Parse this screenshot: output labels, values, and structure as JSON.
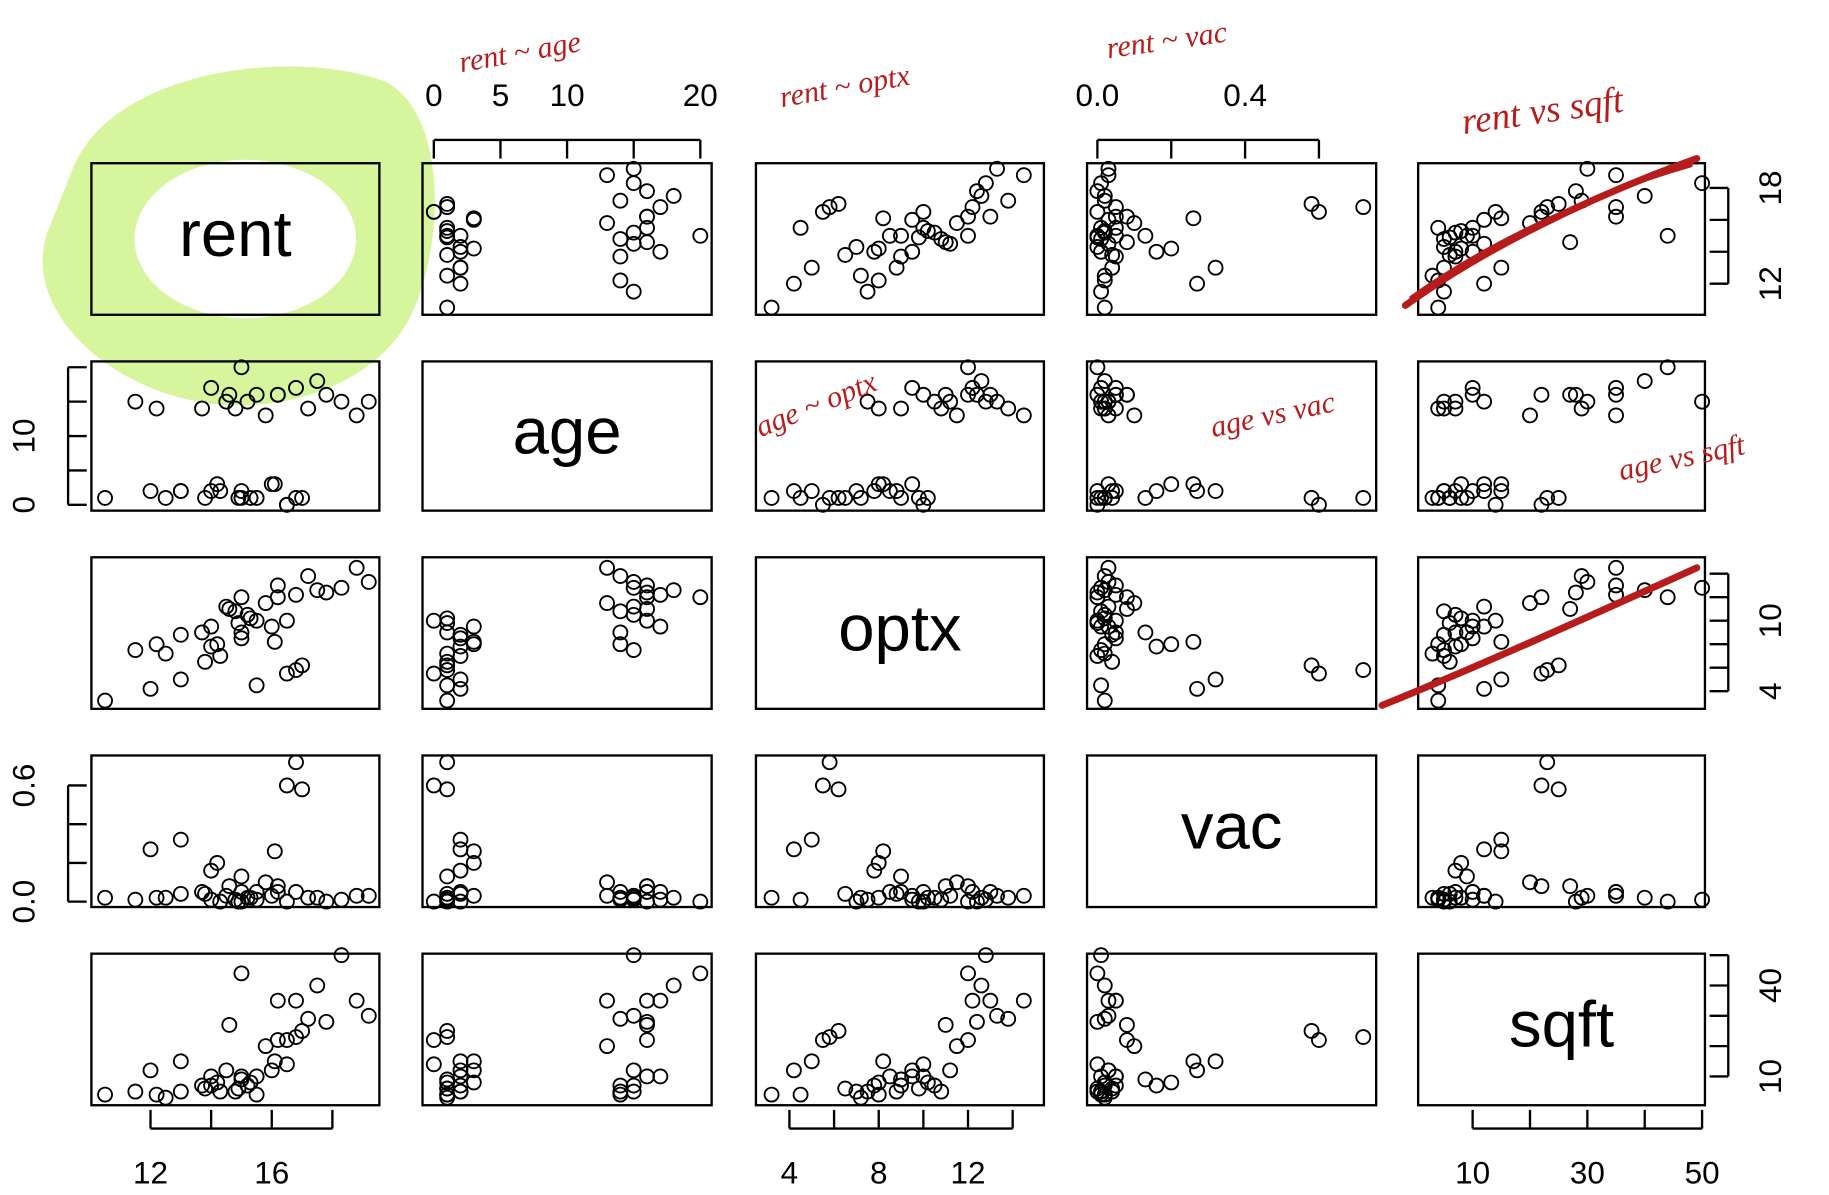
{
  "chart_data": {
    "type": "scatter-matrix",
    "point_color": "#000000",
    "variables": [
      {
        "name": "rent",
        "lim": [
          10.05,
          19.55
        ],
        "axes": {
          "bottom": [
            12,
            {
              "value": 14,
              "label": null
            },
            16,
            {
              "value": 18,
              "label": null
            }
          ],
          "right": [
            12,
            {
              "value": 14,
              "label": null
            },
            {
              "value": 16,
              "label": null
            },
            18
          ]
        }
      },
      {
        "name": "age",
        "lim": [
          -0.85,
          20.85
        ],
        "axes": {
          "top": [
            0,
            5,
            10,
            {
              "value": 15,
              "label": null
            },
            20
          ],
          "left": [
            0,
            {
              "value": 5,
              "label": null
            },
            10,
            {
              "value": 15,
              "label": null
            },
            {
              "value": 20,
              "label": null
            }
          ]
        }
      },
      {
        "name": "optx",
        "lim": [
          2.5,
          15.4
        ],
        "axes": {
          "bottom": [
            4,
            {
              "value": 6,
              "label": null
            },
            8,
            {
              "value": 10,
              "label": null
            },
            12,
            {
              "value": 14,
              "label": null
            }
          ],
          "right": [
            4,
            {
              "value": 6,
              "label": null
            },
            {
              "value": 8,
              "label": null
            },
            10,
            {
              "value": 12,
              "label": null
            },
            {
              "value": 14,
              "label": null
            }
          ]
        }
      },
      {
        "name": "vac",
        "lim": [
          -0.028,
          0.755
        ],
        "axes": {
          "top": [
            {
              "value": 0,
              "label": "0.0"
            },
            {
              "value": 0.2,
              "label": null
            },
            {
              "value": 0.4,
              "label": "0.4"
            },
            {
              "value": 0.6,
              "label": null
            }
          ],
          "left": [
            {
              "value": 0,
              "label": "0.0"
            },
            {
              "value": 0.2,
              "label": null
            },
            {
              "value": 0.4,
              "label": null
            },
            {
              "value": 0.6,
              "label": "0.6"
            }
          ]
        }
      },
      {
        "name": "sqft",
        "lim": [
          0.5,
          50.5
        ],
        "axes": {
          "bottom": [
            10,
            {
              "value": 20,
              "label": null
            },
            30,
            {
              "value": 40,
              "label": null
            },
            50
          ],
          "right": [
            10,
            {
              "value": 20,
              "label": null
            },
            {
              "value": 30,
              "label": null
            },
            40,
            {
              "value": 50,
              "label": null
            }
          ]
        }
      }
    ],
    "observations": [
      [
        19.2,
        15,
        13.3,
        0.03,
        30
      ],
      [
        10.5,
        1,
        3.2,
        0.02,
        4
      ],
      [
        16.8,
        1,
        5.8,
        0.72,
        23
      ],
      [
        16.5,
        0,
        5.5,
        0.6,
        22
      ],
      [
        17.0,
        1,
        6.2,
        0.58,
        25
      ],
      [
        13.0,
        2,
        5.0,
        0.32,
        15
      ],
      [
        12.0,
        2,
        4.2,
        0.27,
        12
      ],
      [
        14.2,
        3,
        8.0,
        0.2,
        8
      ],
      [
        14.0,
        2,
        7.8,
        0.16,
        7
      ],
      [
        15.0,
        1,
        9.0,
        0.13,
        9
      ],
      [
        16.1,
        3,
        8.2,
        0.26,
        15
      ],
      [
        15.5,
        16,
        10.0,
        0.05,
        10
      ],
      [
        15.2,
        15,
        10.5,
        0.02,
        7
      ],
      [
        14.8,
        14,
        10.8,
        0.01,
        5
      ],
      [
        14.5,
        15,
        11.2,
        0.03,
        12
      ],
      [
        16.2,
        16,
        12.0,
        0.08,
        22
      ],
      [
        16.8,
        17,
        12.2,
        0.05,
        35
      ],
      [
        17.5,
        18,
        12.6,
        0.02,
        40
      ],
      [
        18.3,
        15,
        12.8,
        0.01,
        50
      ],
      [
        14.0,
        17,
        9.5,
        0.01,
        10
      ],
      [
        13.7,
        14,
        9.0,
        0.05,
        7
      ],
      [
        12.2,
        14,
        8.0,
        0.02,
        4
      ],
      [
        11.5,
        15,
        7.5,
        0.01,
        5
      ],
      [
        15.8,
        13,
        11.5,
        0.1,
        20
      ],
      [
        17.2,
        14,
        13.8,
        0.02,
        29
      ],
      [
        15.0,
        20,
        12.0,
        0.0,
        44
      ],
      [
        16.2,
        16,
        13.0,
        0.05,
        35
      ],
      [
        14.6,
        16,
        11.0,
        0.08,
        27
      ],
      [
        13.8,
        1,
        6.5,
        0.04,
        6
      ],
      [
        14.3,
        2,
        7.0,
        0.0,
        5
      ],
      [
        15.5,
        1,
        4.5,
        0.01,
        4
      ],
      [
        15.0,
        2,
        8.5,
        0.05,
        10
      ],
      [
        16.0,
        3,
        9.5,
        0.03,
        12
      ],
      [
        14.9,
        1,
        9.8,
        0.0,
        6
      ],
      [
        18.8,
        13,
        14.5,
        0.03,
        35
      ],
      [
        17.8,
        16,
        12.4,
        0.0,
        28
      ],
      [
        15.3,
        1,
        10.2,
        0.02,
        8
      ],
      [
        13.0,
        2,
        8.8,
        0.04,
        5
      ],
      [
        16.5,
        0,
        10.0,
        0.0,
        14
      ],
      [
        12.5,
        1,
        7.2,
        0.02,
        3
      ]
    ],
    "annotations": [
      "rent ~ age",
      "rent ~ optx",
      "rent ~ vac",
      "rent vs sqft",
      "age ~ optx",
      "age vs vac",
      "age vs sqft"
    ]
  }
}
